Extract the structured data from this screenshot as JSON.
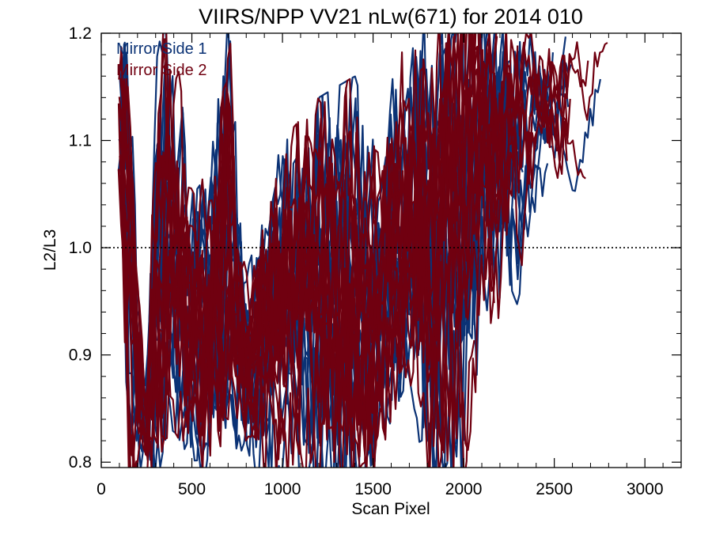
{
  "chart_data": {
    "type": "line",
    "title": "VIIRS/NPP VV21 nLw(671) for 2014 010",
    "xlabel": "Scan Pixel",
    "ylabel": "L2/L3",
    "xlim": [
      0,
      3200
    ],
    "ylim": [
      0.795,
      1.2
    ],
    "xticks": [
      "0",
      "500",
      "1000",
      "1500",
      "2000",
      "2500",
      "3000"
    ],
    "yticks": [
      "0.8",
      "0.9",
      "1.0",
      "1.1",
      "1.2"
    ],
    "reference_line": {
      "y": 1.0,
      "style": "dotted"
    },
    "legend_position": "top-left",
    "series": [
      {
        "name": "Mirror Side 1",
        "color": "#0b3275",
        "traces": 16
      },
      {
        "name": "Mirror Side 2",
        "color": "#700010",
        "traces": 16
      }
    ],
    "envelope": {
      "x": [
        100,
        150,
        200,
        250,
        300,
        350,
        400,
        500,
        600,
        650,
        700,
        800,
        900,
        1000,
        1100,
        1200,
        1300,
        1400,
        1500,
        1600,
        1700,
        1800,
        1900,
        2000,
        2100,
        2200,
        2300,
        2400,
        2500,
        2600,
        2700,
        2800
      ],
      "low": [
        1.05,
        0.8,
        0.79,
        0.79,
        0.79,
        0.84,
        0.85,
        0.82,
        0.8,
        0.83,
        0.86,
        0.8,
        0.79,
        0.8,
        0.8,
        0.79,
        0.79,
        0.79,
        0.8,
        0.86,
        0.9,
        0.79,
        0.8,
        0.8,
        0.93,
        0.92,
        0.97,
        1.05,
        1.06,
        1.07,
        1.09,
        1.18
      ],
      "high": [
        1.2,
        1.2,
        0.95,
        0.86,
        1.15,
        1.2,
        1.18,
        1.05,
        1.08,
        1.15,
        1.2,
        0.96,
        1.02,
        1.08,
        1.1,
        1.12,
        1.13,
        1.14,
        1.08,
        1.15,
        1.2,
        1.2,
        1.2,
        1.2,
        1.2,
        1.2,
        1.2,
        1.2,
        1.2,
        1.2,
        1.2,
        1.2
      ]
    }
  }
}
